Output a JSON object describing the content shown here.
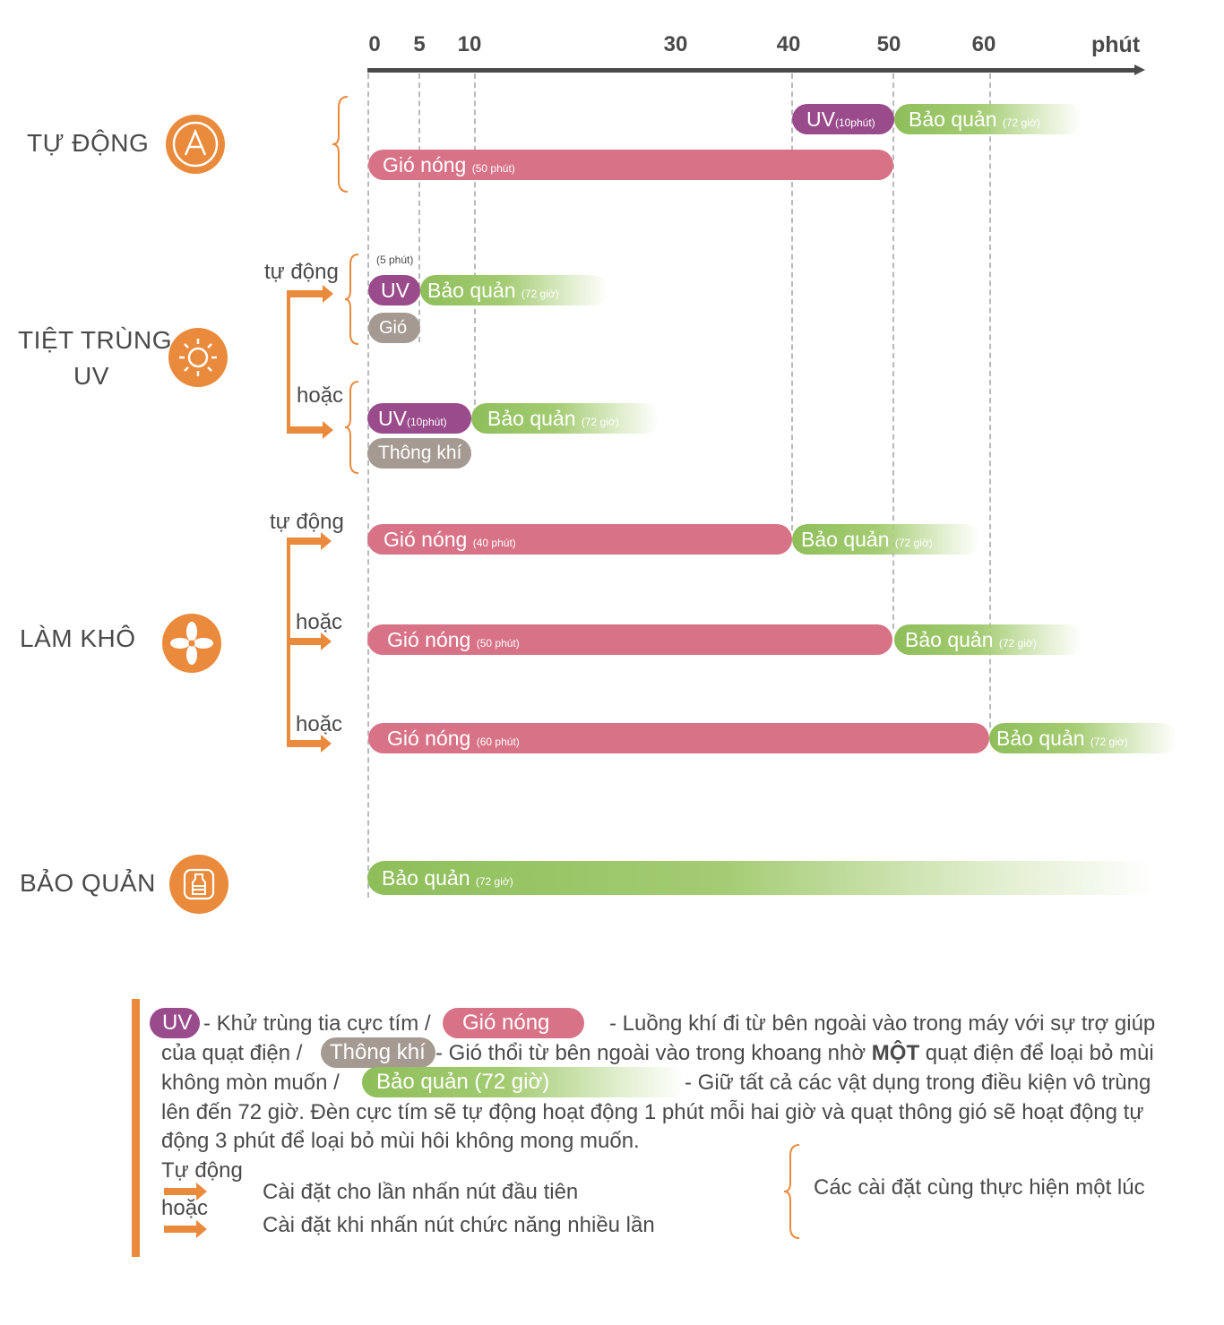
{
  "axis": {
    "ticks": [
      "0",
      "5",
      "10",
      "30",
      "40",
      "50",
      "60"
    ],
    "unit": "phút"
  },
  "modes": {
    "auto": {
      "label": "TỰ ĐỘNG",
      "icon": "auto-A-icon",
      "uv": {
        "label": "UV",
        "note": "(10phút)",
        "start": 40,
        "end": 50
      },
      "store": {
        "label": "Bảo quản",
        "note": "(72 giờ)"
      },
      "hot_air": {
        "label": "Gió nóng",
        "note": "(50 phút)",
        "start": 0,
        "end": 50
      }
    },
    "uv": {
      "label_line1": "TIỆT TRÙNG",
      "label_line2": "UV",
      "icon": "sun-icon",
      "opt1_label": "tự động",
      "opt1_note": "(5 phút)",
      "opt1_uv": "UV",
      "opt1_store": {
        "label": "Bảo quản",
        "note": "(72 giờ)"
      },
      "opt1_fan": "Gió",
      "opt2_label": "hoặc",
      "opt2_uv": {
        "label": "UV",
        "note": "(10phút)"
      },
      "opt2_store": {
        "label": "Bảo quản",
        "note": "(72 giờ)"
      },
      "opt2_vent": "Thông khí"
    },
    "dry": {
      "label": "LÀM KHÔ",
      "icon": "fan-icon",
      "opt1_label": "tự động",
      "opt1_hot": {
        "label": "Gió nóng",
        "note": "(40 phút)"
      },
      "opt1_store": {
        "label": "Bảo quản",
        "note": "(72 giờ)"
      },
      "opt2_label": "hoặc",
      "opt2_hot": {
        "label": "Gió nóng",
        "note": "(50 phút)"
      },
      "opt2_store": {
        "label": "Bảo quản",
        "note": "(72 giờ)"
      },
      "opt3_label": "hoặc",
      "opt3_hot": {
        "label": "Gió nóng",
        "note": "(60 phút)"
      },
      "opt3_store": {
        "label": "Bảo quản",
        "note": "(72 giờ)"
      }
    },
    "store": {
      "label": "BẢO QUẢN",
      "icon": "bottle-icon",
      "bar": {
        "label": "Bảo quản",
        "note": "(72 giờ)"
      }
    }
  },
  "legend": {
    "uv_chip": "UV",
    "uv_text": "- Khử trùng tia cực tím /",
    "hot_chip": "Gió nóng",
    "hot_text": "- Luồng khí đi từ bên ngoài vào trong máy với sự trợ giúp",
    "line2_a": "của quạt điện /",
    "vent_chip": "Thông khí",
    "line2_b": "- Gió thổi từ bên ngoài vào trong khoang nhờ",
    "line2_bold": "MỘT",
    "line2_c": "quạt điện để loại bỏ mùi",
    "line3_a": "không mòn muốn /",
    "store_chip": "Bảo quản (72 giờ)",
    "line3_b": "- Giữ tất cả các vật dụng trong điều kiện vô trùng",
    "line4": "lên đến 72 giờ. Đèn cực tím sẽ tự động hoạt động 1 phút mỗi hai giờ và quạt thông gió sẽ hoạt động tự",
    "line5": "động 3 phút để loại bỏ mùi hôi không mong muốn.",
    "auto_label": "Tự động",
    "auto_desc": "Cài đặt cho lần nhấn nút đầu tiên",
    "or_label": "hoặc",
    "or_desc": "Cài đặt khi nhấn nút chức năng nhiều lần",
    "brace_desc": "Các cài đặt cùng thực hiện một lúc"
  },
  "colors": {
    "accent": "#ea8a3c",
    "hot_air": "#d87286",
    "uv": "#9a4b8b",
    "vent": "#a59a92",
    "store": "#8ebe5a"
  }
}
